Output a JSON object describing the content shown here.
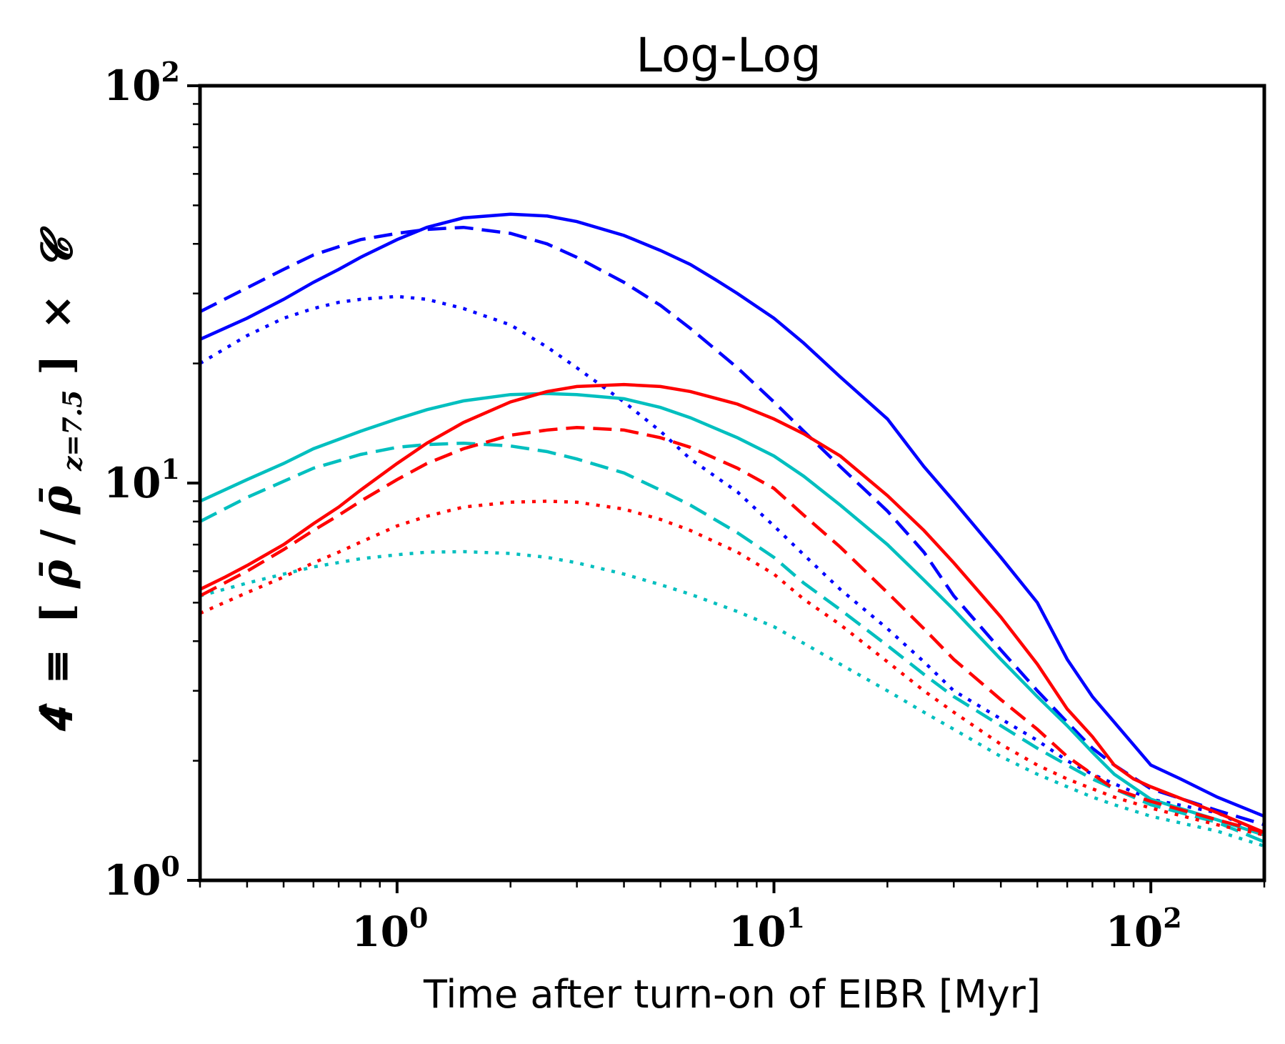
{
  "chart_data": {
    "type": "line",
    "title": "Log-Log",
    "xlabel": "Time after turn-on of EIBR [Myr]",
    "ylabel": "Ĉ ≡ [ρ̄/ρ̄ z=7.5] × Ĉ",
    "ylabel_parts": {
      "lhs": "𝟒̂",
      "equiv": "≡",
      "open": "[",
      "num": "ρ̄",
      "slash": "/",
      "den": "ρ̄",
      "sub": "z=7.5",
      "close": "]",
      "times": "×",
      "rhs": "𝓒"
    },
    "x_scale": "log",
    "y_scale": "log",
    "xlim": [
      0.3,
      200
    ],
    "ylim": [
      1,
      100
    ],
    "x_ticks": [
      {
        "base": "10",
        "exp": "0",
        "value": 1
      },
      {
        "base": "10",
        "exp": "1",
        "value": 10
      },
      {
        "base": "10",
        "exp": "2",
        "value": 100
      }
    ],
    "y_ticks": [
      {
        "base": "10",
        "exp": "0",
        "value": 1
      },
      {
        "base": "10",
        "exp": "1",
        "value": 10
      },
      {
        "base": "10",
        "exp": "2",
        "value": 100
      }
    ],
    "grid": false,
    "legend": "none",
    "series": [
      {
        "color": "#0000ff",
        "style": "solid",
        "x": [
          0.3,
          0.4,
          0.5,
          0.6,
          0.7,
          0.8,
          1.0,
          1.2,
          1.5,
          2.0,
          2.5,
          3.0,
          4.0,
          5.0,
          6.0,
          7.0,
          8.0,
          10,
          12,
          15,
          20,
          25,
          30,
          40,
          50,
          60,
          70,
          80,
          100,
          120,
          150,
          200
        ],
        "y": [
          23,
          26,
          29,
          32,
          34.5,
          37,
          41,
          44,
          46.5,
          47.5,
          47,
          45.5,
          42,
          38.5,
          35.5,
          32.5,
          30,
          26,
          22.5,
          18.5,
          14.5,
          11,
          9,
          6.5,
          5,
          3.6,
          2.9,
          2.5,
          1.95,
          1.8,
          1.62,
          1.45
        ]
      },
      {
        "color": "#0000ff",
        "style": "dashed",
        "x": [
          0.3,
          0.4,
          0.5,
          0.6,
          0.8,
          1.0,
          1.2,
          1.5,
          2.0,
          2.5,
          3.0,
          4.0,
          5.0,
          6.0,
          8.0,
          10,
          12,
          15,
          20,
          25,
          30,
          40,
          50,
          60,
          70,
          80,
          100,
          150,
          200
        ],
        "y": [
          27,
          31,
          34.5,
          37.5,
          41,
          42.5,
          43.5,
          44,
          42.5,
          40,
          37,
          32,
          28,
          24.5,
          19.5,
          16,
          13.5,
          11,
          8.5,
          6.7,
          5.2,
          3.8,
          3.0,
          2.5,
          2.15,
          1.95,
          1.7,
          1.5,
          1.38
        ]
      },
      {
        "color": "#0000ff",
        "style": "dotted",
        "x": [
          0.3,
          0.4,
          0.5,
          0.6,
          0.7,
          0.8,
          1.0,
          1.2,
          1.5,
          2.0,
          2.5,
          3.0,
          4.0,
          5.0,
          6.0,
          8.0,
          10,
          12,
          15,
          20,
          25,
          30,
          40,
          50,
          60,
          70,
          80,
          100,
          150,
          200
        ],
        "y": [
          20,
          23.5,
          26,
          27.5,
          28.5,
          29,
          29.5,
          29,
          27.5,
          25,
          22,
          19.5,
          16,
          13.5,
          11.5,
          9.5,
          7.8,
          6.6,
          5.4,
          4.3,
          3.55,
          3.0,
          2.55,
          2.25,
          2.0,
          1.85,
          1.75,
          1.6,
          1.48,
          1.3
        ]
      },
      {
        "color": "#00bfbf",
        "style": "solid",
        "x": [
          0.3,
          0.4,
          0.5,
          0.6,
          0.8,
          1.0,
          1.2,
          1.5,
          2.0,
          2.5,
          3.0,
          4.0,
          5.0,
          6.0,
          8.0,
          10,
          12,
          15,
          20,
          25,
          30,
          40,
          50,
          60,
          70,
          80,
          100,
          150,
          200
        ],
        "y": [
          9,
          10.2,
          11.2,
          12.2,
          13.5,
          14.5,
          15.3,
          16.1,
          16.7,
          16.8,
          16.7,
          16.3,
          15.5,
          14.6,
          13.0,
          11.7,
          10.4,
          8.8,
          7.0,
          5.7,
          4.8,
          3.6,
          2.9,
          2.45,
          2.1,
          1.85,
          1.6,
          1.42,
          1.3
        ]
      },
      {
        "color": "#00bfbf",
        "style": "dashed",
        "x": [
          0.3,
          0.4,
          0.5,
          0.6,
          0.8,
          1.0,
          1.2,
          1.5,
          2.0,
          2.5,
          3.0,
          4.0,
          5.0,
          6.0,
          8.0,
          10,
          12,
          15,
          20,
          25,
          30,
          40,
          50,
          60,
          70,
          80,
          100,
          150,
          200
        ],
        "y": [
          8,
          9.2,
          10.1,
          10.9,
          11.8,
          12.3,
          12.5,
          12.6,
          12.4,
          12.0,
          11.5,
          10.6,
          9.6,
          8.8,
          7.5,
          6.5,
          5.6,
          4.8,
          3.9,
          3.3,
          2.9,
          2.45,
          2.15,
          1.95,
          1.8,
          1.7,
          1.55,
          1.4,
          1.25
        ]
      },
      {
        "color": "#00bfbf",
        "style": "dotted",
        "x": [
          0.3,
          0.4,
          0.5,
          0.6,
          0.8,
          1.0,
          1.2,
          1.5,
          2.0,
          2.5,
          3.0,
          4.0,
          5.0,
          6.0,
          8.0,
          10,
          12,
          15,
          20,
          25,
          30,
          40,
          50,
          60,
          70,
          80,
          100,
          150,
          200
        ],
        "y": [
          5.2,
          5.6,
          5.9,
          6.15,
          6.45,
          6.6,
          6.7,
          6.72,
          6.65,
          6.5,
          6.3,
          5.9,
          5.55,
          5.25,
          4.75,
          4.35,
          3.95,
          3.5,
          3.0,
          2.65,
          2.4,
          2.05,
          1.85,
          1.72,
          1.62,
          1.55,
          1.45,
          1.33,
          1.22
        ]
      },
      {
        "color": "#ff0000",
        "style": "solid",
        "x": [
          0.3,
          0.35,
          0.4,
          0.5,
          0.6,
          0.7,
          0.8,
          1.0,
          1.2,
          1.5,
          2.0,
          2.5,
          3.0,
          4.0,
          5.0,
          6.0,
          8.0,
          10,
          12,
          15,
          20,
          25,
          30,
          40,
          50,
          60,
          70,
          80,
          90,
          100,
          150,
          200
        ],
        "y": [
          5.4,
          5.8,
          6.2,
          7.0,
          7.9,
          8.7,
          9.6,
          11.2,
          12.6,
          14.2,
          16.0,
          17.0,
          17.5,
          17.7,
          17.5,
          17.0,
          15.8,
          14.5,
          13.3,
          11.7,
          9.3,
          7.6,
          6.3,
          4.6,
          3.5,
          2.7,
          2.3,
          1.95,
          1.8,
          1.72,
          1.48,
          1.32
        ]
      },
      {
        "color": "#ff0000",
        "style": "dashed",
        "x": [
          0.3,
          0.4,
          0.5,
          0.6,
          0.7,
          0.8,
          1.0,
          1.2,
          1.5,
          2.0,
          2.5,
          3.0,
          4.0,
          5.0,
          6.0,
          8.0,
          10,
          12,
          15,
          20,
          25,
          30,
          40,
          50,
          60,
          70,
          80,
          100,
          150,
          200
        ],
        "y": [
          5.2,
          6.0,
          6.8,
          7.6,
          8.3,
          9.0,
          10.2,
          11.2,
          12.2,
          13.2,
          13.6,
          13.8,
          13.6,
          13.0,
          12.3,
          10.9,
          9.7,
          8.3,
          6.9,
          5.3,
          4.3,
          3.6,
          2.85,
          2.4,
          2.05,
          1.85,
          1.7,
          1.58,
          1.42,
          1.32
        ]
      },
      {
        "color": "#ff0000",
        "style": "dotted",
        "x": [
          0.3,
          0.4,
          0.5,
          0.6,
          0.7,
          0.8,
          1.0,
          1.2,
          1.5,
          2.0,
          2.5,
          3.0,
          4.0,
          5.0,
          6.0,
          8.0,
          10,
          12,
          15,
          20,
          25,
          30,
          40,
          50,
          60,
          70,
          80,
          100,
          150,
          200
        ],
        "y": [
          4.7,
          5.3,
          5.8,
          6.3,
          6.7,
          7.1,
          7.8,
          8.25,
          8.7,
          8.95,
          9.0,
          8.95,
          8.6,
          8.1,
          7.6,
          6.7,
          5.9,
          5.1,
          4.4,
          3.55,
          3.0,
          2.65,
          2.2,
          1.95,
          1.8,
          1.7,
          1.62,
          1.52,
          1.38,
          1.3
        ]
      }
    ]
  }
}
